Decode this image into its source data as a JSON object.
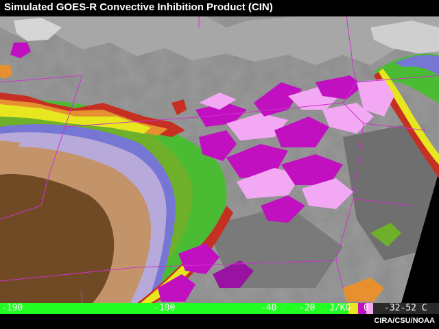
{
  "title": "Simulated GOES-R Convective Inhibition Product (CIN)",
  "credit": "CIRA/CSU/NOAA",
  "legend": {
    "ticks": [
      "-190",
      "-100",
      "-40",
      "-20",
      "J/KG",
      "0",
      "-32-52 C"
    ],
    "units": "J/KG",
    "colors": {
      "bright_green": "#22ff22",
      "dark_brown": "#6f4a25",
      "tan": "#c3946a",
      "lavender": "#b7a9d9",
      "blue_violet": "#7676d4",
      "green": "#4cbb34",
      "yellow_green": "#a9c82a",
      "yellow": "#e7e71f",
      "orange": "#e69030",
      "red": "#c63023",
      "magenta": "#c010c0",
      "pink": "#f3a8f3",
      "state_lines": "#cc33cc"
    }
  }
}
